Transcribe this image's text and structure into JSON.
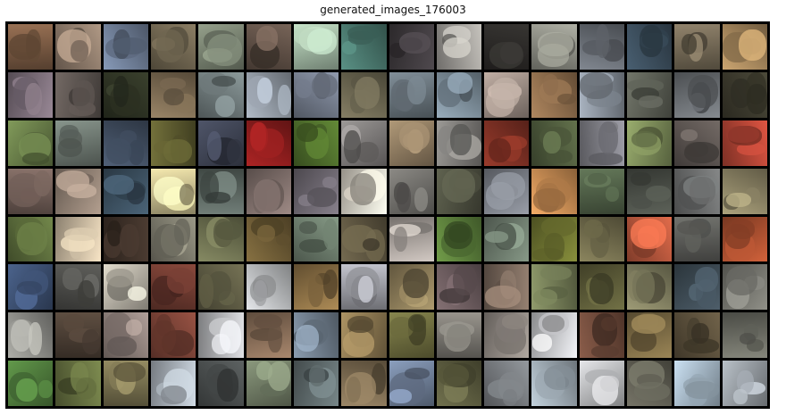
{
  "figure": {
    "title": "generated_images_176003",
    "rows": 8,
    "cols": 16,
    "description_colors": [
      "#7a5a43",
      "#8d7a6a",
      "#6c7b93",
      "#6f6550",
      "#77806f",
      "#5f5046",
      "#9fb6a1",
      "#48746a",
      "#3f3a3e",
      "#9e9c97",
      "#2c2a28",
      "#8c8d84",
      "#676c73",
      "#3a4c5a",
      "#746956",
      "#a2845a",
      "#7a6d78",
      "#5c5450",
      "#2e3324",
      "#7b6a52",
      "#707b7c",
      "#8e96a0",
      "#747c8c",
      "#6a6550",
      "#67727a",
      "#7a8a96",
      "#9a8c84",
      "#8d6c4c",
      "#88909a",
      "#5b5e55",
      "#6b6f73",
      "#3d3b2e",
      "#677b48",
      "#6d7770",
      "#404d5f",
      "#5c5a2f",
      "#3f4454",
      "#8a1d1d",
      "#4f6e2c",
      "#7d7a79",
      "#8d7a60",
      "#7d7b78",
      "#7b2f23",
      "#4f5b3d",
      "#7f7f86",
      "#7b8a58",
      "#5c5551",
      "#b24435",
      "#6f5d56",
      "#8f7f72",
      "#3c5060",
      "#c4ba8c",
      "#5a6560",
      "#7e6e6a",
      "#6d6770",
      "#d6cfc2",
      "#706e6a",
      "#4d4f40",
      "#7a7e86",
      "#c58a52",
      "#506047",
      "#4a4e47",
      "#6b6d6d",
      "#8a8264",
      "#5c6d3c",
      "#c6b79e",
      "#3d3028",
      "#7c7a6c",
      "#6b6e4f",
      "#6c5a35",
      "#6c7c6c",
      "#5d5540",
      "#a8a19c",
      "#5a7d3a",
      "#6c7a6c",
      "#6d7230",
      "#6f6a4b",
      "#b5563c",
      "#5b5c58",
      "#a84e2f",
      "#3c4f70",
      "#4c4c49",
      "#b5b0a4",
      "#6e3a30",
      "#5e5c44",
      "#b7b9bb",
      "#8a6f45",
      "#9c9da4",
      "#8a7b58",
      "#6a5a5d",
      "#77665a",
      "#737c56",
      "#5b5a38",
      "#7e7c5e",
      "#3e4b55",
      "#73736d",
      "#8b8b86",
      "#4c3f35",
      "#8d7f7a",
      "#7a4236",
      "#b3b4b7",
      "#866c57",
      "#6f7d8c",
      "#8a7650",
      "#6c6b3e",
      "#7a7771",
      "#8d8680",
      "#c4c5c8",
      "#6f4a3b",
      "#7b6a45",
      "#5a4f3b",
      "#6a6b62",
      "#4e7a3c",
      "#657040",
      "#77704e",
      "#a8b0b8",
      "#4a4e4e",
      "#6f7a64",
      "#5f6b6d",
      "#7d6c52",
      "#6f7f98",
      "#5a5a3e",
      "#767a7e",
      "#9ba7b0",
      "#b8b9bb",
      "#5e5d52",
      "#a2b4c2",
      "#949aa0"
    ]
  }
}
